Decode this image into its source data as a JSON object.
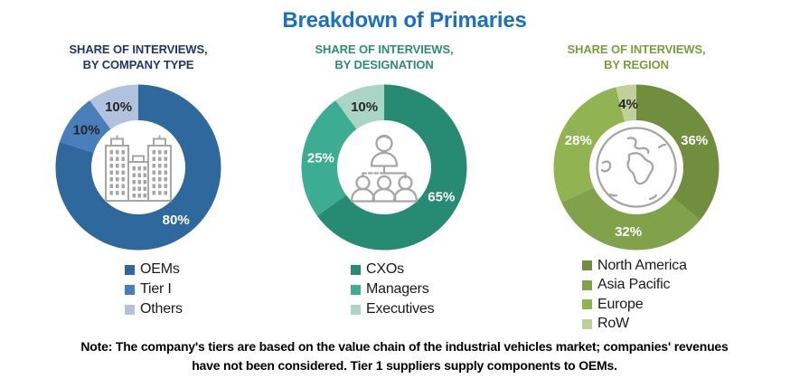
{
  "title": {
    "text": "Breakdown of Primaries",
    "color": "#1B70C0"
  },
  "chart_data": [
    {
      "id": "company-type",
      "type": "donut",
      "title_lines": [
        "SHARE OF INTERVIEWS,",
        "BY COMPANY TYPE"
      ],
      "title_color": "#1F3864",
      "center_icon": "buildings-icon",
      "icon_color": "#A6A6A6",
      "slices": [
        {
          "name": "OEMs",
          "value": 80,
          "label": "80%",
          "color": "#2E689C",
          "label_color": "#FFFFFF"
        },
        {
          "name": "Tier I",
          "value": 10,
          "label": "10%",
          "color": "#4A7EBB",
          "label_color": "#262626"
        },
        {
          "name": "Others",
          "value": 10,
          "label": "10%",
          "color": "#B0C2DE",
          "label_color": "#262626"
        }
      ]
    },
    {
      "id": "designation",
      "type": "donut",
      "title_lines": [
        "SHARE OF INTERVIEWS,",
        "BY DESIGNATION"
      ],
      "title_color": "#2E8B74",
      "center_icon": "org-chart-icon",
      "icon_color": "#A6A6A6",
      "slices": [
        {
          "name": "CXOs",
          "value": 65,
          "label": "65%",
          "color": "#278B74",
          "label_color": "#FFFFFF"
        },
        {
          "name": "Managers",
          "value": 25,
          "label": "25%",
          "color": "#3CAC92",
          "label_color": "#FFFFFF"
        },
        {
          "name": "Executives",
          "value": 10,
          "label": "10%",
          "color": "#AAD5C6",
          "label_color": "#262626"
        }
      ]
    },
    {
      "id": "region",
      "type": "donut",
      "title_lines": [
        "SHARE OF INTERVIEWS,",
        "BY REGION"
      ],
      "title_color": "#7C9C3D",
      "center_icon": "globe-icon",
      "icon_color": "#A6A6A6",
      "slices": [
        {
          "name": "North America",
          "value": 36,
          "label": "36%",
          "color": "#708E3D",
          "label_color": "#FFFFFF"
        },
        {
          "name": "Asia Pacific",
          "value": 32,
          "label": "32%",
          "color": "#81A24B",
          "label_color": "#FFFFFF"
        },
        {
          "name": "Europe",
          "value": 28,
          "label": "28%",
          "color": "#92B351",
          "label_color": "#FFFFFF"
        },
        {
          "name": "RoW",
          "value": 4,
          "label": "4%",
          "color": "#C0D099",
          "label_color": "#262626"
        }
      ]
    }
  ],
  "note": {
    "lines": [
      "Note: The company's tiers are based on the value chain of the industrial vehicles market; companies' revenues",
      "have not been considered. Tier 1 suppliers supply components to OEMs."
    ]
  }
}
